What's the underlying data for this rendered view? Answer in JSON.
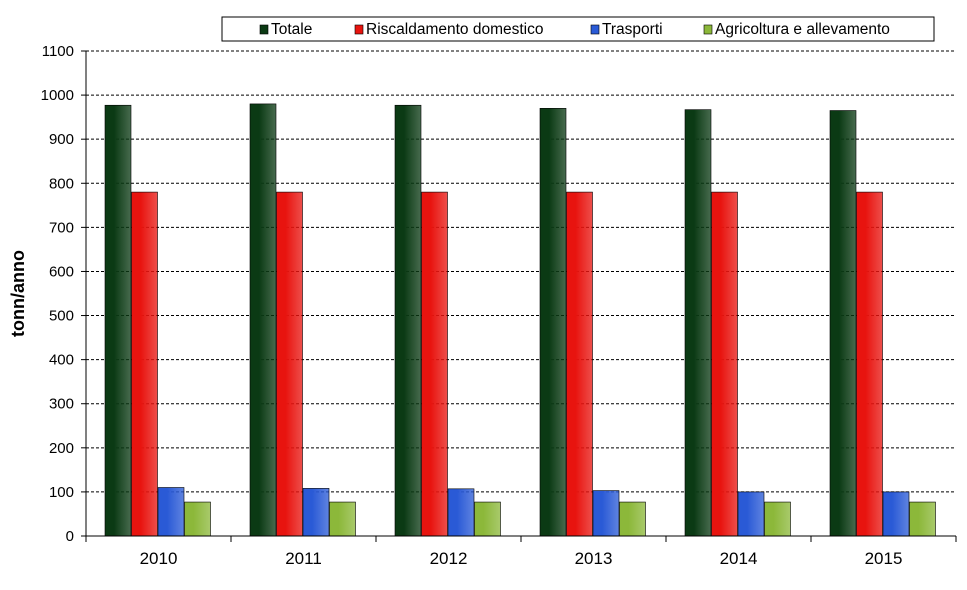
{
  "chart_data": {
    "type": "bar",
    "title": "",
    "xlabel": "",
    "ylabel": "tonn/anno",
    "ylim": [
      0,
      1100
    ],
    "yticks": [
      "0",
      "100",
      "200",
      "300",
      "400",
      "500",
      "600",
      "700",
      "800",
      "900",
      "1000",
      "1100"
    ],
    "grid": true,
    "legend": "top",
    "categories": [
      "2010",
      "2011",
      "2012",
      "2013",
      "2014",
      "2015"
    ],
    "series": [
      {
        "name": "Totale",
        "color": "#0b3a14",
        "values": [
          977,
          980,
          977,
          970,
          967,
          965
        ]
      },
      {
        "name": "Riscaldamento domestico",
        "color": "#e8140f",
        "values": [
          780,
          780,
          780,
          780,
          780,
          780
        ]
      },
      {
        "name": "Trasporti",
        "color": "#2a5ad6",
        "values": [
          110,
          108,
          107,
          103,
          100,
          100
        ]
      },
      {
        "name": "Agricoltura e allevamento",
        "color": "#8cb83a",
        "values": [
          77,
          77,
          77,
          77,
          77,
          77
        ]
      }
    ]
  }
}
